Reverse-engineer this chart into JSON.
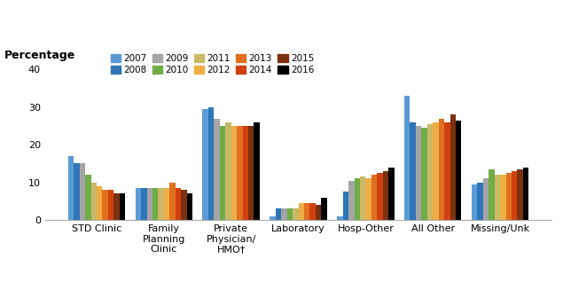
{
  "categories": [
    "STD Clinic",
    "Family\nPlanning\nClinic",
    "Private\nPhysician/\nHMO†",
    "Laboratory",
    "Hosp-Other",
    "All Other",
    "Missing/Unk"
  ],
  "years": [
    "2007",
    "2008",
    "2009",
    "2010",
    "2011",
    "2012",
    "2013",
    "2014",
    "2015",
    "2016"
  ],
  "bar_colors": [
    "#5b9bd5",
    "#2e75b6",
    "#a5a5a5",
    "#70ad47",
    "#c9b966",
    "#edae44",
    "#e07020",
    "#d04010",
    "#7b3010",
    "#000000"
  ],
  "data": {
    "STD Clinic": [
      17,
      15,
      15,
      12,
      10,
      9,
      8,
      8,
      7,
      7
    ],
    "Family\nPlanning\nClinic": [
      8.5,
      8.5,
      8.5,
      8.5,
      8.5,
      8.5,
      10,
      8.5,
      8,
      7
    ],
    "Private\nPhysician/\nHMO†": [
      29.5,
      30,
      27,
      25,
      26,
      25,
      25,
      25,
      25,
      26
    ],
    "Laboratory": [
      1,
      3,
      3,
      3,
      3,
      4.5,
      4.5,
      4.5,
      4,
      6
    ],
    "Hosp-Other": [
      1,
      7.5,
      10.5,
      11,
      11.5,
      11,
      12,
      12.5,
      13,
      14
    ],
    "All Other": [
      33,
      26,
      25,
      24.5,
      25.5,
      26,
      27,
      26,
      28,
      26.5
    ],
    "Missing/Unk": [
      9.5,
      10,
      11,
      13.5,
      12,
      12,
      12.5,
      13,
      13.5,
      14
    ]
  },
  "ylabel": "Percentage",
  "ylim": [
    0,
    42
  ],
  "yticks": [
    0,
    10,
    20,
    30,
    40
  ],
  "legend_row1": [
    "2007",
    "2008",
    "2009",
    "2010",
    "2011"
  ],
  "legend_row2": [
    "2012",
    "2013",
    "2014",
    "2015",
    "2016"
  ]
}
